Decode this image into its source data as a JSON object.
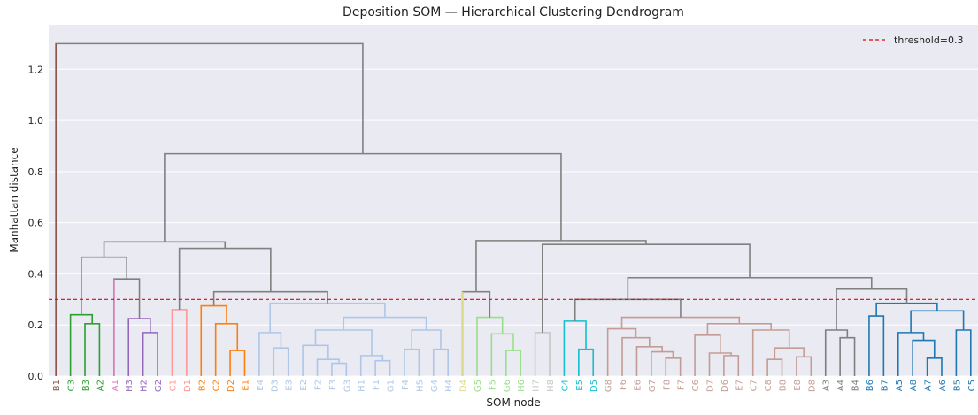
{
  "chart_data": {
    "type": "dendrogram",
    "title": "Deposition SOM — Hierarchical Clustering Dendrogram",
    "xlabel": "SOM node",
    "ylabel": "Manhattan distance",
    "ylim": [
      0,
      1.374
    ],
    "yticks": [
      {
        "value": 0,
        "label": "0.0"
      },
      0.2,
      0.4,
      0.6,
      0.8,
      {
        "value": 1,
        "label": "1.0"
      },
      1.2
    ],
    "grid": true,
    "threshold": 0.3,
    "threshold_color": "#e8000b",
    "threshold_label": "threshold=0.3",
    "legend": "upper right",
    "above_color": "#808080",
    "leaves": [
      {
        "label": "B1",
        "color": "#8c564b"
      },
      {
        "label": "C3",
        "color": "#2ca02c"
      },
      {
        "label": "B3",
        "color": "#2ca02c"
      },
      {
        "label": "A2",
        "color": "#2ca02c"
      },
      {
        "label": "A1",
        "color": "#e377c2"
      },
      {
        "label": "H3",
        "color": "#9467bd"
      },
      {
        "label": "H2",
        "color": "#9467bd"
      },
      {
        "label": "G2",
        "color": "#9467bd"
      },
      {
        "label": "C1",
        "color": "#ff9896"
      },
      {
        "label": "D1",
        "color": "#ff9896"
      },
      {
        "label": "B2",
        "color": "#ff7f0e"
      },
      {
        "label": "C2",
        "color": "#ff7f0e"
      },
      {
        "label": "D2",
        "color": "#ff7f0e"
      },
      {
        "label": "E1",
        "color": "#ff7f0e"
      },
      {
        "label": "E4",
        "color": "#aec7e8"
      },
      {
        "label": "D3",
        "color": "#aec7e8"
      },
      {
        "label": "E3",
        "color": "#aec7e8"
      },
      {
        "label": "E2",
        "color": "#aec7e8"
      },
      {
        "label": "F2",
        "color": "#aec7e8"
      },
      {
        "label": "F3",
        "color": "#aec7e8"
      },
      {
        "label": "G3",
        "color": "#aec7e8"
      },
      {
        "label": "H1",
        "color": "#aec7e8"
      },
      {
        "label": "F1",
        "color": "#aec7e8"
      },
      {
        "label": "G1",
        "color": "#aec7e8"
      },
      {
        "label": "F4",
        "color": "#aec7e8"
      },
      {
        "label": "H5",
        "color": "#aec7e8"
      },
      {
        "label": "G4",
        "color": "#aec7e8"
      },
      {
        "label": "H4",
        "color": "#aec7e8"
      },
      {
        "label": "D4",
        "color": "#dbdb8d"
      },
      {
        "label": "G5",
        "color": "#98df8a"
      },
      {
        "label": "F5",
        "color": "#98df8a"
      },
      {
        "label": "G6",
        "color": "#98df8a"
      },
      {
        "label": "H6",
        "color": "#98df8a"
      },
      {
        "label": "H7",
        "color": "#c7c7c7"
      },
      {
        "label": "H8",
        "color": "#c7c7c7"
      },
      {
        "label": "C4",
        "color": "#17becf"
      },
      {
        "label": "E5",
        "color": "#17becf"
      },
      {
        "label": "D5",
        "color": "#17becf"
      },
      {
        "label": "G8",
        "color": "#c49c94"
      },
      {
        "label": "F6",
        "color": "#c49c94"
      },
      {
        "label": "E6",
        "color": "#c49c94"
      },
      {
        "label": "G7",
        "color": "#c49c94"
      },
      {
        "label": "F8",
        "color": "#c49c94"
      },
      {
        "label": "F7",
        "color": "#c49c94"
      },
      {
        "label": "C6",
        "color": "#c49c94"
      },
      {
        "label": "D7",
        "color": "#c49c94"
      },
      {
        "label": "D6",
        "color": "#c49c94"
      },
      {
        "label": "E7",
        "color": "#c49c94"
      },
      {
        "label": "C7",
        "color": "#c49c94"
      },
      {
        "label": "C8",
        "color": "#c49c94"
      },
      {
        "label": "B8",
        "color": "#c49c94"
      },
      {
        "label": "E8",
        "color": "#c49c94"
      },
      {
        "label": "D8",
        "color": "#c49c94"
      },
      {
        "label": "A3",
        "color": "#7f7f7f"
      },
      {
        "label": "A4",
        "color": "#7f7f7f"
      },
      {
        "label": "B4",
        "color": "#7f7f7f"
      },
      {
        "label": "B6",
        "color": "#1f77b4"
      },
      {
        "label": "B7",
        "color": "#1f77b4"
      },
      {
        "label": "A5",
        "color": "#1f77b4"
      },
      {
        "label": "A8",
        "color": "#1f77b4"
      },
      {
        "label": "A7",
        "color": "#1f77b4"
      },
      {
        "label": "A6",
        "color": "#1f77b4"
      },
      {
        "label": "B5",
        "color": "#1f77b4"
      },
      {
        "label": "C5",
        "color": "#1f77b4"
      }
    ],
    "merges": [
      {
        "children": [
          2,
          3
        ],
        "height": 0.205,
        "color": "#2ca02c"
      },
      {
        "children": [
          1,
          64
        ],
        "height": 0.24,
        "color": "#2ca02c"
      },
      {
        "children": [
          6,
          7
        ],
        "height": 0.17,
        "color": "#9467bd"
      },
      {
        "children": [
          5,
          66
        ],
        "height": 0.225,
        "color": "#9467bd"
      },
      {
        "children": [
          4,
          67
        ],
        "height": 0.38,
        "color": "#808080"
      },
      {
        "children": [
          65,
          68
        ],
        "height": 0.465,
        "color": "#808080"
      },
      {
        "children": [
          8,
          9
        ],
        "height": 0.26,
        "color": "#ff9896"
      },
      {
        "children": [
          12,
          13
        ],
        "height": 0.1,
        "color": "#ff7f0e"
      },
      {
        "children": [
          11,
          71
        ],
        "height": 0.205,
        "color": "#ff7f0e"
      },
      {
        "children": [
          10,
          72
        ],
        "height": 0.275,
        "color": "#ff7f0e"
      },
      {
        "children": [
          15,
          16
        ],
        "height": 0.11,
        "color": "#aec7e8"
      },
      {
        "children": [
          14,
          74
        ],
        "height": 0.17,
        "color": "#aec7e8"
      },
      {
        "children": [
          19,
          20
        ],
        "height": 0.05,
        "color": "#aec7e8"
      },
      {
        "children": [
          18,
          76
        ],
        "height": 0.065,
        "color": "#aec7e8"
      },
      {
        "children": [
          17,
          77
        ],
        "height": 0.12,
        "color": "#aec7e8"
      },
      {
        "children": [
          22,
          23
        ],
        "height": 0.06,
        "color": "#aec7e8"
      },
      {
        "children": [
          21,
          79
        ],
        "height": 0.08,
        "color": "#aec7e8"
      },
      {
        "children": [
          78,
          80
        ],
        "height": 0.18,
        "color": "#aec7e8"
      },
      {
        "children": [
          24,
          25
        ],
        "height": 0.105,
        "color": "#aec7e8"
      },
      {
        "children": [
          26,
          27
        ],
        "height": 0.105,
        "color": "#aec7e8"
      },
      {
        "children": [
          82,
          83
        ],
        "height": 0.18,
        "color": "#aec7e8"
      },
      {
        "children": [
          81,
          84
        ],
        "height": 0.23,
        "color": "#aec7e8"
      },
      {
        "children": [
          75,
          85
        ],
        "height": 0.285,
        "color": "#aec7e8"
      },
      {
        "children": [
          73,
          86
        ],
        "height": 0.33,
        "color": "#808080"
      },
      {
        "children": [
          70,
          87
        ],
        "height": 0.5,
        "color": "#808080"
      },
      {
        "children": [
          69,
          88
        ],
        "height": 0.525,
        "color": "#808080"
      },
      {
        "children": [
          31,
          32
        ],
        "height": 0.1,
        "color": "#98df8a"
      },
      {
        "children": [
          30,
          90
        ],
        "height": 0.165,
        "color": "#98df8a"
      },
      {
        "children": [
          29,
          91
        ],
        "height": 0.23,
        "color": "#98df8a"
      },
      {
        "children": [
          28,
          92
        ],
        "height": 0.33,
        "color": "#808080"
      },
      {
        "children": [
          33,
          34
        ],
        "height": 0.17,
        "color": "#c7c7c7"
      },
      {
        "children": [
          36,
          37
        ],
        "height": 0.105,
        "color": "#17becf"
      },
      {
        "children": [
          35,
          95
        ],
        "height": 0.215,
        "color": "#17becf"
      },
      {
        "children": [
          42,
          43
        ],
        "height": 0.07,
        "color": "#c49c94"
      },
      {
        "children": [
          41,
          97
        ],
        "height": 0.095,
        "color": "#c49c94"
      },
      {
        "children": [
          40,
          98
        ],
        "height": 0.115,
        "color": "#c49c94"
      },
      {
        "children": [
          39,
          99
        ],
        "height": 0.15,
        "color": "#c49c94"
      },
      {
        "children": [
          38,
          100
        ],
        "height": 0.185,
        "color": "#c49c94"
      },
      {
        "children": [
          46,
          47
        ],
        "height": 0.08,
        "color": "#c49c94"
      },
      {
        "children": [
          45,
          102
        ],
        "height": 0.09,
        "color": "#c49c94"
      },
      {
        "children": [
          44,
          103
        ],
        "height": 0.16,
        "color": "#c49c94"
      },
      {
        "children": [
          49,
          50
        ],
        "height": 0.065,
        "color": "#c49c94"
      },
      {
        "children": [
          51,
          52
        ],
        "height": 0.075,
        "color": "#c49c94"
      },
      {
        "children": [
          105,
          106
        ],
        "height": 0.11,
        "color": "#c49c94"
      },
      {
        "children": [
          48,
          107
        ],
        "height": 0.18,
        "color": "#c49c94"
      },
      {
        "children": [
          104,
          108
        ],
        "height": 0.205,
        "color": "#c49c94"
      },
      {
        "children": [
          101,
          109
        ],
        "height": 0.23,
        "color": "#c49c94"
      },
      {
        "children": [
          96,
          110
        ],
        "height": 0.3,
        "color": "#808080"
      },
      {
        "children": [
          54,
          55
        ],
        "height": 0.15,
        "color": "#7f7f7f"
      },
      {
        "children": [
          53,
          112
        ],
        "height": 0.18,
        "color": "#7f7f7f"
      },
      {
        "children": [
          60,
          61
        ],
        "height": 0.07,
        "color": "#1f77b4"
      },
      {
        "children": [
          59,
          114
        ],
        "height": 0.14,
        "color": "#1f77b4"
      },
      {
        "children": [
          58,
          115
        ],
        "height": 0.17,
        "color": "#1f77b4"
      },
      {
        "children": [
          62,
          63
        ],
        "height": 0.18,
        "color": "#1f77b4"
      },
      {
        "children": [
          116,
          117
        ],
        "height": 0.255,
        "color": "#1f77b4"
      },
      {
        "children": [
          56,
          57
        ],
        "height": 0.235,
        "color": "#1f77b4"
      },
      {
        "children": [
          119,
          118
        ],
        "height": 0.285,
        "color": "#1f77b4"
      },
      {
        "children": [
          113,
          120
        ],
        "height": 0.34,
        "color": "#808080"
      },
      {
        "children": [
          111,
          121
        ],
        "height": 0.385,
        "color": "#808080"
      },
      {
        "children": [
          94,
          122
        ],
        "height": 0.515,
        "color": "#808080"
      },
      {
        "children": [
          93,
          123
        ],
        "height": 0.53,
        "color": "#808080"
      },
      {
        "children": [
          89,
          124
        ],
        "height": 0.87,
        "color": "#808080"
      },
      {
        "children": [
          0,
          125
        ],
        "height": 1.3,
        "color": "#808080"
      }
    ]
  }
}
